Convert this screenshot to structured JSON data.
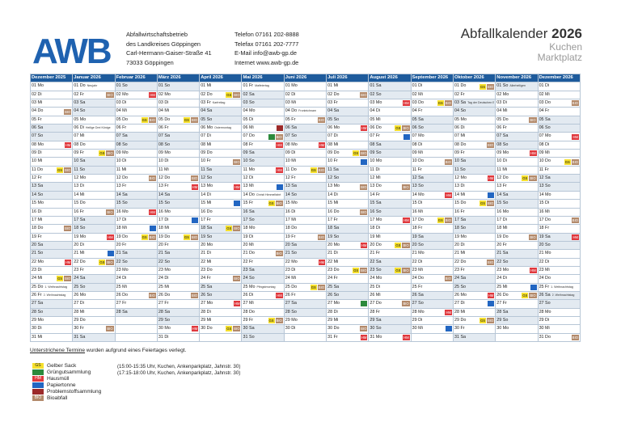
{
  "header": {
    "logo": "AWB",
    "address": [
      "Abfallwirtschaftsbetrieb",
      "des Landkreises Göppingen",
      "Carl-Hermann-Gaiser-Straße 41",
      "73033 Göppingen"
    ],
    "contact": [
      "Telefon 07161 202-8888",
      "Telefax 07161 202-7777",
      "E-Mail info@awb-gp.de",
      "Internet www.awb-gp.de"
    ],
    "title_name": "Abfallkalender",
    "title_year": "2026",
    "sub1": "Kuchen",
    "sub2": "Marktplatz"
  },
  "colors": {
    "GS": "#f6e02c",
    "BIO": "#b38a6b",
    "HM": "#e0383d",
    "P": "#2266c2",
    "G": "#2c8a3c",
    "PS": "#9c2a2a",
    "header": "#1e5b9c"
  },
  "tag_labels": {
    "GS": "GS",
    "BIO": "BIO",
    "HM": "HM",
    "P": "",
    "G": "",
    "PS": ""
  },
  "months": [
    "Dezember 2025",
    "Januar 2026",
    "Februar 2026",
    "März 2026",
    "April 2026",
    "Mai 2026",
    "Juni 2026",
    "Juli 2026",
    "August 2026",
    "September 2026",
    "Oktober 2026",
    "November 2026",
    "Dezember 2026"
  ],
  "columns": [
    {
      "first": 1,
      "days": 31,
      "wd0": 0
    },
    {
      "first": 1,
      "days": 31,
      "wd0": 3
    },
    {
      "first": 1,
      "days": 28,
      "wd0": 6
    },
    {
      "first": 1,
      "days": 31,
      "wd0": 6
    },
    {
      "first": 1,
      "days": 30,
      "wd0": 2
    },
    {
      "first": 1,
      "days": 31,
      "wd0": 4
    },
    {
      "first": 1,
      "days": 30,
      "wd0": 0
    },
    {
      "first": 1,
      "days": 31,
      "wd0": 2
    },
    {
      "first": 1,
      "days": 31,
      "wd0": 5
    },
    {
      "first": 1,
      "days": 30,
      "wd0": 1
    },
    {
      "first": 1,
      "days": 31,
      "wd0": 3
    },
    {
      "first": 1,
      "days": 30,
      "wd0": 6
    },
    {
      "first": 1,
      "days": 31,
      "wd0": 1
    }
  ],
  "weekday_abbr": [
    "Mo",
    "Di",
    "Mi",
    "Do",
    "Fr",
    "Sa",
    "So"
  ],
  "entries": {
    "0": {
      "4": {
        "t": [
          "BIO"
        ]
      },
      "8": {
        "t": [
          "HM"
        ]
      },
      "11": {
        "t": [
          "GS",
          "BIO"
        ]
      },
      "18": {
        "t": [
          "BIO"
        ]
      },
      "22": {
        "t": [
          "HM"
        ]
      },
      "24": {
        "t": [
          "GS",
          "BIO"
        ],
        "x": ""
      },
      "25": {
        "n": "1. Weihnachtstag"
      },
      "26": {
        "n": "2. Weihnachtstag"
      }
    },
    "1": {
      "1": {
        "n": "Neujahr"
      },
      "2": {
        "t": [
          "BIO"
        ]
      },
      "6": {
        "n": "Heilige Drei Könige"
      },
      "9": {
        "t": [
          "GS",
          "BIO"
        ]
      },
      "16": {
        "t": [
          "BIO"
        ]
      },
      "19": {
        "t": [
          "HM"
        ]
      },
      "21": {
        "t": [
          "P"
        ]
      },
      "22": {
        "t": [
          "GS",
          "BIO"
        ]
      },
      "30": {
        "t": [
          "BIO"
        ]
      }
    },
    "2": {
      "2": {
        "t": [
          "HM"
        ]
      },
      "5": {
        "t": [
          "GS",
          "BIO"
        ]
      },
      "12": {
        "t": [
          "BIO"
        ]
      },
      "16": {
        "t": [
          "HM"
        ]
      },
      "18": {
        "t": [
          "P"
        ]
      },
      "19": {
        "t": [
          "GS",
          "BIO"
        ]
      },
      "26": {
        "t": [
          "BIO"
        ]
      }
    },
    "3": {
      "5": {
        "t": [
          "GS",
          "BIO"
        ]
      },
      "12": {
        "t": [
          "BIO"
        ]
      },
      "13": {
        "t": [
          "HM"
        ]
      },
      "17": {
        "t": [
          "P"
        ]
      },
      "19": {
        "t": [
          "GS",
          "BIO"
        ]
      },
      "26": {
        "t": [
          "BIO"
        ]
      },
      "30": {
        "t": [
          "HM"
        ]
      }
    },
    "4": {
      "2": {
        "t": [
          "GS",
          "BIO"
        ]
      },
      "3": {
        "n": "Karfreitag"
      },
      "6": {
        "n": "Ostermontag"
      },
      "10": {
        "t": [
          "BIO"
        ]
      },
      "13": {
        "t": [
          "HM"
        ]
      },
      "15": {
        "t": [
          "P"
        ]
      },
      "18": {
        "t": [
          "GS",
          "BIO"
        ]
      },
      "24": {
        "t": [
          "BIO"
        ]
      },
      "27": {
        "t": [
          "HM"
        ]
      },
      "30": {
        "t": [
          "GS",
          "BIO"
        ]
      }
    },
    "5": {
      "1": {
        "n": "Maifeiertag"
      },
      "6": {
        "t": [
          "PS"
        ]
      },
      "7": {
        "t": [
          "G",
          "BIO"
        ]
      },
      "8": {
        "t": [
          "HM"
        ]
      },
      "11": {
        "t": [
          "HM"
        ]
      },
      "13": {
        "t": [
          "P"
        ]
      },
      "14": {
        "n": "Christi Himmelfahrt"
      },
      "15": {
        "t": [
          "GS",
          "BIO"
        ]
      },
      "21": {
        "t": [
          "BIO"
        ]
      },
      "25": {
        "n": "Pfingstmontag"
      },
      "26": {
        "t": [
          "HM"
        ]
      },
      "29": {
        "t": [
          "GS",
          "BIO"
        ]
      }
    },
    "6": {
      "4": {
        "n": "Fronleichnam"
      },
      "5": {
        "t": [
          "BIO"
        ]
      },
      "8": {
        "t": [
          "HM"
        ]
      },
      "11": {
        "t": [
          "GS",
          "BIO"
        ]
      },
      "19": {
        "t": [
          "BIO"
        ]
      },
      "22": {
        "t": [
          "HM"
        ]
      },
      "25": {
        "t": [
          "GS",
          "BIO"
        ]
      }
    },
    "7": {
      "2": {
        "t": [
          "BIO"
        ]
      },
      "6": {
        "t": [
          "HM"
        ]
      },
      "9": {
        "t": [
          "GS",
          "BIO"
        ]
      },
      "10": {
        "t": [
          "P"
        ]
      },
      "13": {
        "t": [
          "BIO"
        ]
      },
      "16": {
        "t": [
          "BIO"
        ]
      },
      "20": {
        "t": [
          "HM"
        ]
      },
      "23": {
        "t": [
          "GS",
          "BIO"
        ]
      },
      "27": {
        "t": [
          "G"
        ]
      },
      "30": {
        "t": [
          "BIO"
        ]
      },
      "31": {
        "t": [
          "HM"
        ]
      }
    },
    "8": {
      "3": {
        "t": [
          "HM"
        ]
      },
      "6": {
        "t": [
          "GS",
          "BIO"
        ]
      },
      "7": {
        "t": [
          "P"
        ]
      },
      "13": {
        "t": [
          "BIO"
        ]
      },
      "17": {
        "t": [
          "HM"
        ]
      },
      "20": {
        "t": [
          "GS",
          "BIO"
        ]
      },
      "23": {
        "t": [
          "GS",
          "BIO"
        ]
      },
      "27": {
        "t": [
          "BIO"
        ]
      },
      "31": {
        "t": [
          "HM"
        ]
      }
    },
    "9": {
      "3": {
        "t": [
          "GS",
          "BIO"
        ]
      },
      "10": {
        "t": [
          "BIO"
        ]
      },
      "14": {
        "t": [
          "HM"
        ]
      },
      "17": {
        "t": [
          "GS",
          "BIO"
        ]
      },
      "24": {
        "t": [
          "BIO"
        ]
      },
      "28": {
        "t": [
          "HM"
        ]
      },
      "30": {
        "t": [
          "P"
        ]
      }
    },
    "10": {
      "1": {
        "t": [
          "GS",
          "BIO"
        ]
      },
      "3": {
        "n": "Tag der Deutschen Einheit"
      },
      "8": {
        "t": [
          "BIO"
        ]
      },
      "12": {
        "t": [
          "HM"
        ]
      },
      "14": {
        "t": [
          "P"
        ]
      },
      "15": {
        "t": [
          "GS",
          "BIO"
        ]
      },
      "22": {
        "t": [
          "BIO"
        ]
      },
      "26": {
        "t": [
          "HM"
        ]
      },
      "27": {
        "t": [
          "P"
        ]
      },
      "29": {
        "t": [
          "GS",
          "BIO"
        ]
      }
    },
    "11": {
      "1": {
        "n": "Allerheiligen"
      },
      "5": {
        "t": [
          "BIO"
        ]
      },
      "9": {
        "t": [
          "HM"
        ]
      },
      "12": {
        "t": [
          "GS",
          "BIO"
        ]
      },
      "19": {
        "t": [
          "BIO"
        ]
      },
      "23": {
        "t": [
          "HM"
        ]
      },
      "25": {
        "t": [
          "P"
        ]
      },
      "26": {
        "t": [
          "GS",
          "BIO"
        ]
      }
    },
    "12": {
      "3": {
        "t": [
          "BIO"
        ]
      },
      "7": {
        "t": [
          "HM"
        ]
      },
      "10": {
        "t": [
          "GS",
          "BIO"
        ]
      },
      "17": {
        "t": [
          "BIO"
        ]
      },
      "19": {
        "t": [
          "HM"
        ]
      },
      "22": {
        "t": []
      },
      "25": {
        "n": "1. Weihnachtstag"
      },
      "26": {
        "n": "2. Weihnachtstag"
      },
      "31": {
        "t": [
          "BIO"
        ]
      }
    }
  },
  "note": {
    "underlined": "Unterstrichene Termine",
    "rest": " wurden aufgrund eines Feiertages verlegt."
  },
  "legend": [
    {
      "key": "GS",
      "label": "Gelber Sack"
    },
    {
      "key": "G",
      "label": "Grüngutsammlung"
    },
    {
      "key": "HM",
      "label": "Hausmüll"
    },
    {
      "key": "P",
      "label": "Papiertonne"
    },
    {
      "key": "PS",
      "label": "Problemstoffsammlung"
    },
    {
      "key": "BIO",
      "label": "Bioabfall"
    }
  ],
  "hours": [
    "(15:00-15:35 Uhr, Kuchen, Ankenparkplatz, Jahnstr. 30)",
    "(17:15-18:00 Uhr, Kuchen, Ankenparkplatz, Jahnstr. 30)"
  ]
}
